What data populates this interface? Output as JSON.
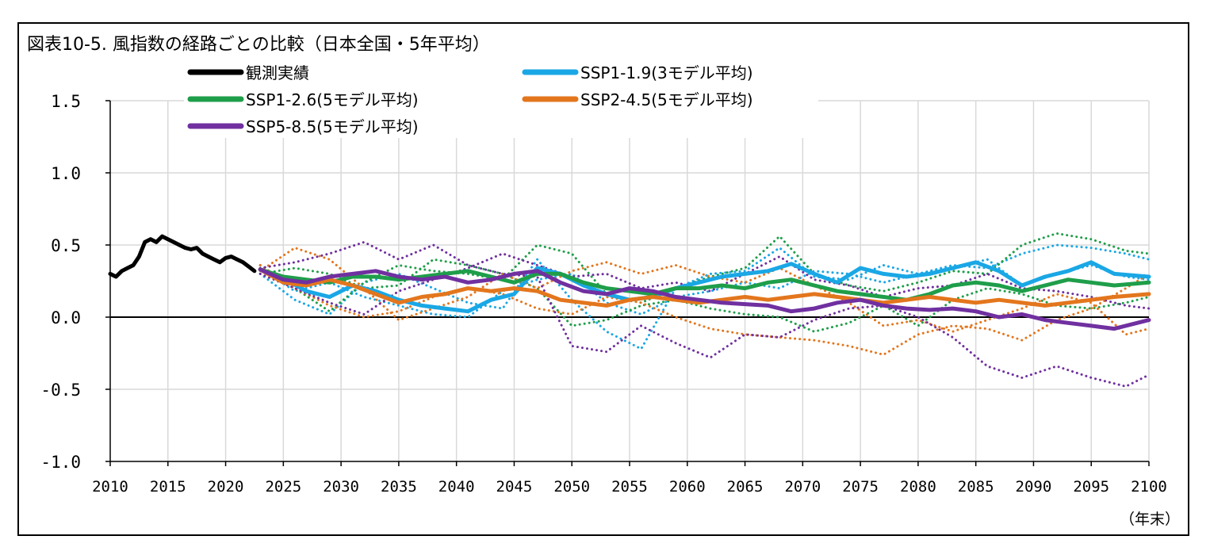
{
  "title": "図表10-5. 風指数の経路ごとの比較（日本全国・5年平均）",
  "x_unit_label": "（年末）",
  "chart_data": {
    "type": "line",
    "ylim": [
      -1.0,
      1.5
    ],
    "xlim": [
      2010,
      2100
    ],
    "y_ticks": [
      "1.5",
      "1.0",
      "0.5",
      "0.0",
      "-0.5",
      "-1.0"
    ],
    "y_tick_values": [
      1.5,
      1.0,
      0.5,
      0.0,
      -0.5,
      -1.0
    ],
    "x_ticks": [
      "2010",
      "2015",
      "2020",
      "2025",
      "2030",
      "2035",
      "2040",
      "2045",
      "2050",
      "2055",
      "2060",
      "2065",
      "2070",
      "2075",
      "2080",
      "2085",
      "2090",
      "2095",
      "2100"
    ],
    "x_tick_values": [
      2010,
      2015,
      2020,
      2025,
      2030,
      2035,
      2040,
      2045,
      2050,
      2055,
      2060,
      2065,
      2070,
      2075,
      2080,
      2085,
      2090,
      2095,
      2100
    ],
    "grid": "vertical",
    "legend_position": "top",
    "legend": [
      {
        "label": "観測実績",
        "color": "#000000"
      },
      {
        "label": "SSP1-1.9(3モデル平均)",
        "color": "#1aa7e5"
      },
      {
        "label": "SSP1-2.6(5モデル平均)",
        "color": "#1f9e4a"
      },
      {
        "label": "SSP2-4.5(5モデル平均)",
        "color": "#e3761d"
      },
      {
        "label": "SSP5-8.5(5モデル平均)",
        "color": "#7030a0"
      }
    ],
    "series": [
      {
        "name": "観測実績",
        "color": "#000000",
        "style": "solid",
        "x": [
          2010,
          2010.5,
          2011,
          2011.5,
          2012,
          2012.5,
          2013,
          2013.5,
          2014,
          2014.5,
          2015,
          2015.5,
          2016,
          2016.5,
          2017,
          2017.5,
          2018,
          2018.5,
          2019,
          2019.5,
          2020,
          2020.5,
          2021,
          2021.5,
          2022,
          2022.5
        ],
        "y": [
          0.3,
          0.28,
          0.32,
          0.34,
          0.36,
          0.42,
          0.52,
          0.54,
          0.52,
          0.56,
          0.54,
          0.52,
          0.5,
          0.48,
          0.47,
          0.48,
          0.44,
          0.42,
          0.4,
          0.38,
          0.41,
          0.42,
          0.4,
          0.38,
          0.35,
          0.32
        ]
      },
      {
        "name": "SSP1-1.9(3モデル平均)",
        "color": "#1aa7e5",
        "style": "solid",
        "x": [
          2023,
          2025,
          2027,
          2029,
          2031,
          2033,
          2035,
          2037,
          2039,
          2041,
          2043,
          2045,
          2047,
          2049,
          2051,
          2053,
          2055,
          2057,
          2059,
          2061,
          2063,
          2065,
          2067,
          2069,
          2071,
          2073,
          2075,
          2077,
          2079,
          2081,
          2083,
          2085,
          2087,
          2089,
          2091,
          2093,
          2095,
          2097,
          2100
        ],
        "y": [
          0.33,
          0.27,
          0.18,
          0.14,
          0.22,
          0.18,
          0.12,
          0.08,
          0.06,
          0.04,
          0.12,
          0.16,
          0.34,
          0.3,
          0.22,
          0.16,
          0.12,
          0.14,
          0.2,
          0.24,
          0.28,
          0.3,
          0.32,
          0.37,
          0.3,
          0.24,
          0.34,
          0.3,
          0.28,
          0.3,
          0.34,
          0.38,
          0.32,
          0.22,
          0.28,
          0.32,
          0.38,
          0.3,
          0.28
        ]
      },
      {
        "name": "SSP1-2.6(5モデル平均)",
        "color": "#1f9e4a",
        "style": "solid",
        "x": [
          2023,
          2025,
          2027,
          2029,
          2031,
          2033,
          2035,
          2037,
          2039,
          2041,
          2043,
          2045,
          2047,
          2049,
          2051,
          2053,
          2055,
          2057,
          2059,
          2061,
          2063,
          2065,
          2067,
          2069,
          2071,
          2073,
          2075,
          2077,
          2079,
          2081,
          2083,
          2085,
          2087,
          2089,
          2091,
          2093,
          2095,
          2097,
          2100
        ],
        "y": [
          0.33,
          0.28,
          0.26,
          0.24,
          0.28,
          0.28,
          0.26,
          0.28,
          0.3,
          0.32,
          0.28,
          0.24,
          0.3,
          0.3,
          0.24,
          0.2,
          0.18,
          0.16,
          0.2,
          0.2,
          0.22,
          0.2,
          0.24,
          0.26,
          0.22,
          0.18,
          0.16,
          0.14,
          0.12,
          0.16,
          0.22,
          0.24,
          0.22,
          0.18,
          0.22,
          0.26,
          0.24,
          0.22,
          0.24
        ]
      },
      {
        "name": "SSP2-4.5(5モデル平均)",
        "color": "#e3761d",
        "style": "solid",
        "x": [
          2023,
          2025,
          2027,
          2029,
          2031,
          2033,
          2035,
          2037,
          2039,
          2041,
          2043,
          2045,
          2047,
          2049,
          2051,
          2053,
          2055,
          2057,
          2059,
          2061,
          2063,
          2065,
          2067,
          2069,
          2071,
          2073,
          2075,
          2077,
          2079,
          2081,
          2083,
          2085,
          2087,
          2089,
          2091,
          2093,
          2095,
          2097,
          2100
        ],
        "y": [
          0.33,
          0.24,
          0.22,
          0.26,
          0.22,
          0.16,
          0.1,
          0.14,
          0.16,
          0.2,
          0.18,
          0.2,
          0.18,
          0.12,
          0.1,
          0.08,
          0.12,
          0.14,
          0.12,
          0.1,
          0.12,
          0.14,
          0.12,
          0.14,
          0.16,
          0.14,
          0.12,
          0.1,
          0.12,
          0.14,
          0.12,
          0.1,
          0.12,
          0.1,
          0.08,
          0.1,
          0.12,
          0.14,
          0.16
        ]
      },
      {
        "name": "SSP5-8.5(5モデル平均)",
        "color": "#7030a0",
        "style": "solid",
        "x": [
          2023,
          2025,
          2027,
          2029,
          2031,
          2033,
          2035,
          2037,
          2039,
          2041,
          2043,
          2045,
          2047,
          2049,
          2051,
          2053,
          2055,
          2057,
          2059,
          2061,
          2063,
          2065,
          2067,
          2069,
          2071,
          2073,
          2075,
          2077,
          2079,
          2081,
          2083,
          2085,
          2087,
          2089,
          2091,
          2093,
          2095,
          2097,
          2100
        ],
        "y": [
          0.33,
          0.26,
          0.24,
          0.28,
          0.3,
          0.32,
          0.28,
          0.26,
          0.28,
          0.24,
          0.26,
          0.3,
          0.32,
          0.24,
          0.18,
          0.16,
          0.2,
          0.18,
          0.14,
          0.12,
          0.1,
          0.09,
          0.08,
          0.04,
          0.06,
          0.1,
          0.12,
          0.08,
          0.06,
          0.05,
          0.06,
          0.04,
          0.0,
          0.02,
          -0.02,
          -0.04,
          -0.06,
          -0.08,
          -0.02
        ]
      },
      {
        "name": "",
        "color": "#1aa7e5",
        "style": "dotted",
        "x": [
          2023,
          2026,
          2029,
          2032,
          2035,
          2038,
          2041,
          2044,
          2047,
          2050,
          2053,
          2056,
          2059,
          2062,
          2065,
          2068,
          2071,
          2074,
          2077,
          2080,
          2083,
          2086,
          2089,
          2092,
          2095,
          2098,
          2100
        ],
        "y": [
          0.3,
          0.12,
          0.02,
          0.24,
          0.3,
          0.2,
          0.1,
          0.06,
          0.4,
          0.12,
          -0.1,
          -0.22,
          0.2,
          0.3,
          0.32,
          0.48,
          0.28,
          0.26,
          0.36,
          0.3,
          0.34,
          0.4,
          0.22,
          0.3,
          0.36,
          0.28,
          0.26
        ]
      },
      {
        "name": "",
        "color": "#1aa7e5",
        "style": "dotted",
        "x": [
          2023,
          2026,
          2029,
          2032,
          2035,
          2038,
          2041,
          2044,
          2047,
          2050,
          2053,
          2056,
          2059,
          2062,
          2065,
          2068,
          2071,
          2074,
          2077,
          2080,
          2083,
          2086,
          2089,
          2092,
          2095,
          2098,
          2100
        ],
        "y": [
          0.34,
          0.18,
          0.24,
          0.14,
          0.08,
          0.02,
          0.0,
          0.18,
          0.26,
          0.3,
          0.1,
          0.02,
          0.14,
          0.18,
          0.24,
          0.2,
          0.32,
          0.3,
          0.24,
          0.3,
          0.36,
          0.34,
          0.44,
          0.5,
          0.48,
          0.44,
          0.4
        ]
      },
      {
        "name": "",
        "color": "#1f9e4a",
        "style": "dotted",
        "x": [
          2023,
          2026,
          2029,
          2032,
          2035,
          2038,
          2041,
          2044,
          2047,
          2050,
          2053,
          2056,
          2059,
          2062,
          2065,
          2068,
          2071,
          2074,
          2077,
          2080,
          2083,
          2086,
          2089,
          2092,
          2095,
          2098,
          2100
        ],
        "y": [
          0.36,
          0.2,
          0.04,
          0.24,
          0.36,
          0.32,
          0.3,
          0.26,
          0.5,
          0.44,
          0.16,
          0.1,
          0.2,
          0.28,
          0.34,
          0.56,
          0.3,
          0.22,
          0.18,
          0.24,
          0.32,
          0.3,
          0.5,
          0.58,
          0.54,
          0.46,
          0.44
        ]
      },
      {
        "name": "",
        "color": "#1f9e4a",
        "style": "dotted",
        "x": [
          2023,
          2026,
          2029,
          2032,
          2035,
          2038,
          2041,
          2044,
          2047,
          2050,
          2053,
          2056,
          2059,
          2062,
          2065,
          2068,
          2071,
          2074,
          2077,
          2080,
          2083,
          2086,
          2089,
          2092,
          2095,
          2098,
          2100
        ],
        "y": [
          0.3,
          0.34,
          0.3,
          0.2,
          0.22,
          0.4,
          0.36,
          0.3,
          0.2,
          -0.06,
          -0.02,
          0.08,
          0.12,
          0.06,
          0.02,
          0.0,
          -0.1,
          -0.04,
          0.08,
          -0.06,
          0.12,
          0.2,
          0.16,
          0.08,
          0.06,
          0.1,
          0.14
        ]
      },
      {
        "name": "",
        "color": "#e3761d",
        "style": "dotted",
        "x": [
          2023,
          2026,
          2029,
          2032,
          2035,
          2038,
          2041,
          2044,
          2047,
          2050,
          2053,
          2056,
          2059,
          2062,
          2065,
          2068,
          2071,
          2074,
          2077,
          2080,
          2083,
          2086,
          2089,
          2092,
          2095,
          2098,
          2100
        ],
        "y": [
          0.32,
          0.48,
          0.4,
          0.2,
          -0.02,
          0.06,
          0.14,
          0.3,
          0.2,
          0.32,
          0.38,
          0.3,
          0.36,
          0.28,
          0.24,
          0.34,
          0.22,
          0.1,
          -0.06,
          -0.02,
          -0.1,
          -0.02,
          0.06,
          0.16,
          0.1,
          -0.12,
          -0.08
        ]
      },
      {
        "name": "",
        "color": "#e3761d",
        "style": "dotted",
        "x": [
          2023,
          2026,
          2029,
          2032,
          2035,
          2038,
          2041,
          2044,
          2047,
          2050,
          2053,
          2056,
          2059,
          2062,
          2065,
          2068,
          2071,
          2074,
          2077,
          2080,
          2083,
          2086,
          2089,
          2092,
          2095,
          2098,
          2100
        ],
        "y": [
          0.36,
          0.2,
          0.08,
          0.0,
          0.04,
          0.14,
          0.2,
          0.16,
          0.06,
          0.02,
          0.14,
          0.1,
          0.0,
          -0.08,
          -0.12,
          -0.14,
          -0.16,
          -0.2,
          -0.26,
          -0.12,
          -0.06,
          -0.08,
          -0.16,
          -0.02,
          0.06,
          0.2,
          0.3
        ]
      },
      {
        "name": "",
        "color": "#7030a0",
        "style": "dotted",
        "x": [
          2023,
          2026,
          2029,
          2032,
          2035,
          2038,
          2041,
          2044,
          2047,
          2050,
          2053,
          2056,
          2059,
          2062,
          2065,
          2068,
          2071,
          2074,
          2077,
          2080,
          2083,
          2086,
          2089,
          2092,
          2095,
          2098,
          2100
        ],
        "y": [
          0.34,
          0.38,
          0.44,
          0.52,
          0.4,
          0.5,
          0.36,
          0.3,
          0.28,
          -0.2,
          -0.24,
          -0.06,
          -0.18,
          -0.28,
          -0.12,
          -0.14,
          -0.02,
          0.06,
          0.08,
          0.0,
          -0.14,
          -0.34,
          -0.42,
          -0.34,
          -0.42,
          -0.48,
          -0.4
        ]
      },
      {
        "name": "",
        "color": "#7030a0",
        "style": "dotted",
        "x": [
          2023,
          2026,
          2029,
          2032,
          2035,
          2038,
          2041,
          2044,
          2047,
          2050,
          2053,
          2056,
          2059,
          2062,
          2065,
          2068,
          2071,
          2074,
          2077,
          2080,
          2083,
          2086,
          2089,
          2092,
          2095,
          2098,
          2100
        ],
        "y": [
          0.3,
          0.2,
          0.1,
          0.02,
          0.18,
          0.26,
          0.34,
          0.44,
          0.36,
          0.28,
          0.3,
          0.2,
          0.24,
          0.18,
          0.3,
          0.42,
          0.26,
          0.22,
          0.14,
          0.2,
          0.22,
          0.3,
          0.2,
          0.18,
          0.14,
          0.08,
          0.06
        ]
      }
    ]
  }
}
